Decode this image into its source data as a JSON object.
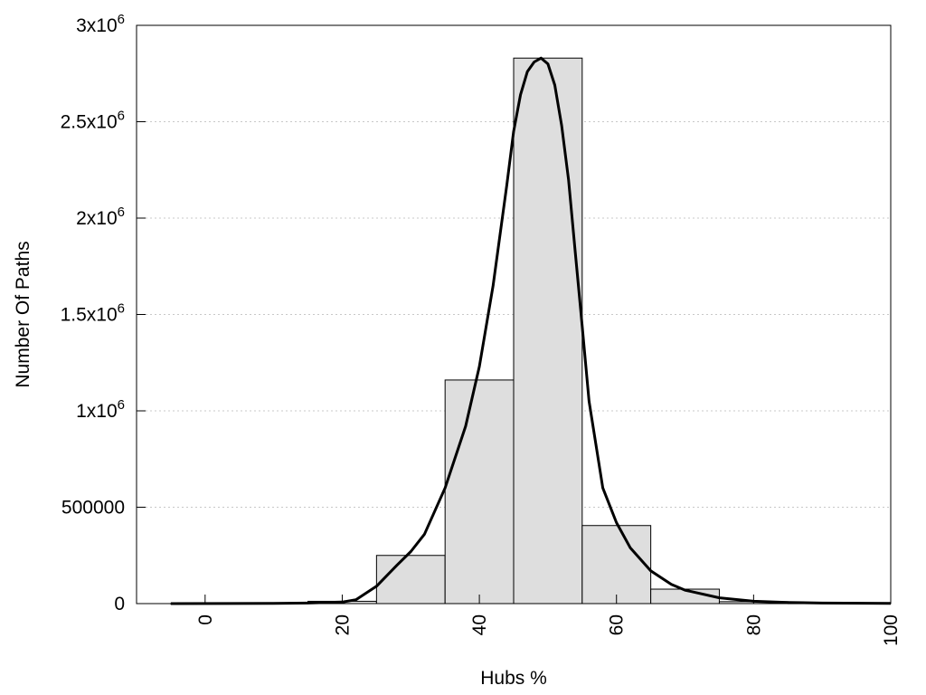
{
  "chart_data": {
    "type": "bar",
    "title": "",
    "xlabel": "Hubs %",
    "ylabel": "Number Of Paths",
    "xlim": [
      -10,
      100
    ],
    "ylim": [
      0,
      3000000
    ],
    "grid": true,
    "bin_width": 10,
    "x": [
      0,
      10,
      20,
      30,
      40,
      50,
      60,
      70,
      80,
      90
    ],
    "values": [
      500,
      2000,
      12000,
      250000,
      1160000,
      2830000,
      405000,
      75000,
      10000,
      2000
    ],
    "x_ticks": [
      {
        "value": 0,
        "label": "0"
      },
      {
        "value": 20,
        "label": "20"
      },
      {
        "value": 40,
        "label": "40"
      },
      {
        "value": 60,
        "label": "60"
      },
      {
        "value": 80,
        "label": "80"
      },
      {
        "value": 100,
        "label": "100"
      }
    ],
    "y_ticks": [
      {
        "value": 0,
        "base": "0",
        "exp": ""
      },
      {
        "value": 500000,
        "base": "500000",
        "exp": ""
      },
      {
        "value": 1000000,
        "base": "1x10",
        "exp": "6"
      },
      {
        "value": 1500000,
        "base": "1.5x10",
        "exp": "6"
      },
      {
        "value": 2000000,
        "base": "2x10",
        "exp": "6"
      },
      {
        "value": 2500000,
        "base": "2.5x10",
        "exp": "6"
      },
      {
        "value": 3000000,
        "base": "3x10",
        "exp": "6"
      }
    ],
    "fit_curve": {
      "x": [
        -5,
        10,
        15,
        20,
        22,
        25,
        28,
        30,
        32,
        35,
        38,
        40,
        42,
        44,
        45,
        46,
        47,
        48,
        49,
        50,
        51,
        52,
        53,
        54,
        55,
        56,
        58,
        60,
        62,
        65,
        68,
        70,
        75,
        80,
        85,
        90,
        100
      ],
      "y": [
        0,
        1000,
        3000,
        8000,
        20000,
        90000,
        200000,
        270000,
        360000,
        600000,
        920000,
        1230000,
        1650000,
        2170000,
        2450000,
        2640000,
        2760000,
        2810000,
        2830000,
        2800000,
        2690000,
        2480000,
        2200000,
        1820000,
        1440000,
        1050000,
        600000,
        420000,
        290000,
        170000,
        100000,
        70000,
        30000,
        12000,
        6000,
        3000,
        1000
      ]
    },
    "colors": {
      "bar_fill": "#dedede",
      "bar_stroke": "#000000",
      "curve": "#000000",
      "grid": "#c8c8c8"
    }
  }
}
